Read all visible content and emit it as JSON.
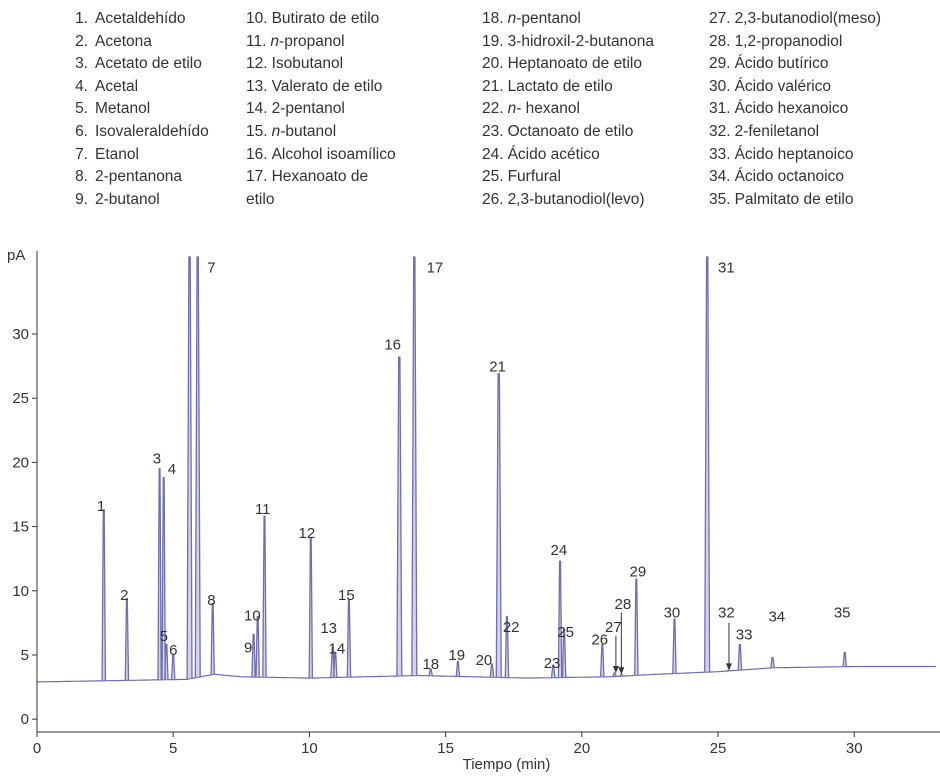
{
  "legend": [
    [
      {
        "num": "1.",
        "label": "Acetaldehído"
      },
      {
        "num": "2.",
        "label": "Acetona"
      },
      {
        "num": "3.",
        "label": "Acetato de etilo"
      },
      {
        "num": "4.",
        "label": "Acetal"
      },
      {
        "num": "5.",
        "label": "Metanol"
      },
      {
        "num": "6.",
        "label": "Isovaleraldehído"
      },
      {
        "num": "7.",
        "label": "Etanol"
      },
      {
        "num": "8.",
        "label": "2-pentanona"
      },
      {
        "num": "9.",
        "label": "2-butanol"
      }
    ],
    [
      {
        "num": "10.",
        "label": "Butirato de etilo"
      },
      {
        "num": "11.",
        "label": "n-propanol"
      },
      {
        "num": "12.",
        "label": "Isobutanol"
      },
      {
        "num": "13.",
        "label": "Valerato de etilo"
      },
      {
        "num": "14.",
        "label": "2-pentanol"
      },
      {
        "num": "15.",
        "label": "n-butanol"
      },
      {
        "num": "16.",
        "label": "Alcohol isoamílico"
      },
      {
        "num": "17.",
        "label": "Hexanoato de etilo"
      }
    ],
    [
      {
        "num": "18.",
        "label": "n-pentanol"
      },
      {
        "num": "19.",
        "label": "3-hidroxil-2-butanona"
      },
      {
        "num": "20.",
        "label": "Heptanoato de etilo"
      },
      {
        "num": "21.",
        "label": "Lactato de etilo"
      },
      {
        "num": "22.",
        "label": "n- hexanol"
      },
      {
        "num": "23.",
        "label": "Octanoato de etilo"
      },
      {
        "num": "24.",
        "label": "Ácido acético"
      },
      {
        "num": "25.",
        "label": "Furfural"
      },
      {
        "num": "26.",
        "label": "2,3-butanodiol(levo)"
      }
    ],
    [
      {
        "num": "27.",
        "label": "2,3-butanodiol(meso)"
      },
      {
        "num": "28.",
        "label": "1,2-propanodiol"
      },
      {
        "num": "29.",
        "label": "Ácido butírico"
      },
      {
        "num": "30.",
        "label": "Ácido valérico"
      },
      {
        "num": "31.",
        "label": "Ácido hexanoico"
      },
      {
        "num": "32.",
        "label": "2-feniletanol"
      },
      {
        "num": "33.",
        "label": "Ácido heptanoico"
      },
      {
        "num": "34.",
        "label": "Ácido octanoico"
      },
      {
        "num": "35.",
        "label": "Palmitato de etilo"
      }
    ]
  ],
  "colors": {
    "trace": "#6e6eb0",
    "trace_light": "#a8a8d8",
    "axis": "#333333",
    "text": "#333333"
  },
  "chart_data": {
    "type": "line",
    "xlabel": "Tiempo (min)",
    "ylabel": "pA",
    "xlim": [
      0,
      33
    ],
    "ylim": [
      -1,
      36
    ],
    "xticks": [
      0,
      5,
      10,
      15,
      20,
      25,
      30
    ],
    "yticks": [
      0,
      5,
      10,
      15,
      20,
      25,
      30
    ],
    "grid": false,
    "baseline": [
      [
        0,
        2.9
      ],
      [
        5.5,
        3.1
      ],
      [
        6.5,
        3.5
      ],
      [
        7.5,
        3.3
      ],
      [
        10,
        3.2
      ],
      [
        14,
        3.4
      ],
      [
        18,
        3.2
      ],
      [
        21,
        3.3
      ],
      [
        22.8,
        3.5
      ],
      [
        25,
        3.7
      ],
      [
        27,
        4.0
      ],
      [
        30,
        4.1
      ],
      [
        33,
        4.1
      ]
    ],
    "peaks": [
      {
        "label": "1",
        "x": 2.45,
        "y": 16.3
      },
      {
        "label": "2",
        "x": 3.3,
        "y": 9.4
      },
      {
        "label": "3",
        "x": 4.5,
        "y": 19.5
      },
      {
        "label": "4",
        "x": 4.65,
        "y": 18.8
      },
      {
        "label": "5",
        "x": 4.75,
        "y": 5.8
      },
      {
        "label": "6",
        "x": 5.0,
        "y": 5.0
      },
      {
        "label": "7",
        "x": 5.6,
        "y": 36
      },
      {
        "label": "7",
        "x": 5.9,
        "y": 36
      },
      {
        "label": "8",
        "x": 6.45,
        "y": 9.0
      },
      {
        "label": "9",
        "x": 7.95,
        "y": 6.6
      },
      {
        "label": "10",
        "x": 8.1,
        "y": 8.0
      },
      {
        "label": "11",
        "x": 8.35,
        "y": 15.8
      },
      {
        "label": "12",
        "x": 10.05,
        "y": 14.1
      },
      {
        "label": "13",
        "x": 10.85,
        "y": 5.6
      },
      {
        "label": "14",
        "x": 10.95,
        "y": 5.2
      },
      {
        "label": "15",
        "x": 11.45,
        "y": 9.3
      },
      {
        "label": "16",
        "x": 13.3,
        "y": 28.2
      },
      {
        "label": "17",
        "x": 13.85,
        "y": 36
      },
      {
        "label": "18",
        "x": 14.45,
        "y": 3.9
      },
      {
        "label": "19",
        "x": 15.45,
        "y": 4.5
      },
      {
        "label": "20",
        "x": 16.7,
        "y": 4.3
      },
      {
        "label": "21",
        "x": 16.95,
        "y": 26.9
      },
      {
        "label": "22",
        "x": 17.25,
        "y": 8.0
      },
      {
        "label": "23",
        "x": 18.95,
        "y": 4.2
      },
      {
        "label": "24",
        "x": 19.2,
        "y": 12.3
      },
      {
        "label": "25",
        "x": 19.35,
        "y": 7.0
      },
      {
        "label": "26",
        "x": 20.75,
        "y": 5.8
      },
      {
        "label": "27",
        "x": 21.2,
        "y": 3.6
      },
      {
        "label": "28",
        "x": 21.45,
        "y": 3.5
      },
      {
        "label": "29",
        "x": 22.0,
        "y": 10.9
      },
      {
        "label": "30",
        "x": 23.4,
        "y": 7.8
      },
      {
        "label": "31",
        "x": 24.6,
        "y": 36
      },
      {
        "label": "32",
        "x": 25.4,
        "y": 3.8
      },
      {
        "label": "33",
        "x": 25.8,
        "y": 5.8
      },
      {
        "label": "34",
        "x": 27.0,
        "y": 4.8
      },
      {
        "label": "35",
        "x": 29.65,
        "y": 5.2
      }
    ],
    "annotations": [
      {
        "text": "1",
        "x": 2.2,
        "y": 16.2
      },
      {
        "text": "2",
        "x": 3.05,
        "y": 9.3
      },
      {
        "text": "3",
        "x": 4.25,
        "y": 19.9
      },
      {
        "text": "4",
        "x": 4.8,
        "y": 19.1
      },
      {
        "text": "5",
        "x": 4.5,
        "y": 6.1
      },
      {
        "text": "6",
        "x": 4.85,
        "y": 5.0
      },
      {
        "text": "7",
        "x": 6.25,
        "y": 34.8
      },
      {
        "text": "8",
        "x": 6.25,
        "y": 8.9
      },
      {
        "text": "9",
        "x": 7.6,
        "y": 5.2
      },
      {
        "text": "10",
        "x": 7.6,
        "y": 7.7
      },
      {
        "text": "11",
        "x": 8.0,
        "y": 16.0
      },
      {
        "text": "12",
        "x": 9.6,
        "y": 14.1
      },
      {
        "text": "13",
        "x": 10.4,
        "y": 6.7
      },
      {
        "text": "14",
        "x": 10.7,
        "y": 5.1
      },
      {
        "text": "15",
        "x": 11.05,
        "y": 9.3
      },
      {
        "text": "16",
        "x": 12.75,
        "y": 28.8
      },
      {
        "text": "17",
        "x": 14.3,
        "y": 34.8
      },
      {
        "text": "18",
        "x": 14.15,
        "y": 3.9
      },
      {
        "text": "19",
        "x": 15.1,
        "y": 4.6
      },
      {
        "text": "20",
        "x": 16.1,
        "y": 4.2
      },
      {
        "text": "21",
        "x": 16.6,
        "y": 27.1
      },
      {
        "text": "22",
        "x": 17.1,
        "y": 6.8
      },
      {
        "text": "23",
        "x": 18.6,
        "y": 4.0
      },
      {
        "text": "24",
        "x": 18.85,
        "y": 12.8
      },
      {
        "text": "25",
        "x": 19.1,
        "y": 6.4
      },
      {
        "text": "26",
        "x": 20.35,
        "y": 5.8
      },
      {
        "text": "27",
        "x": 20.85,
        "y": 6.8
      },
      {
        "text": "28",
        "x": 21.2,
        "y": 8.6
      },
      {
        "text": "29",
        "x": 21.75,
        "y": 11.1
      },
      {
        "text": "30",
        "x": 23.0,
        "y": 7.9
      },
      {
        "text": "31",
        "x": 25.0,
        "y": 34.8
      },
      {
        "text": "32",
        "x": 25.0,
        "y": 7.9
      },
      {
        "text": "33",
        "x": 25.65,
        "y": 6.2
      },
      {
        "text": "34",
        "x": 26.85,
        "y": 7.6
      },
      {
        "text": "35",
        "x": 29.25,
        "y": 7.9
      }
    ],
    "arrows": [
      {
        "x": 21.25,
        "y_from": 6.5,
        "y_to": 3.6
      },
      {
        "x": 21.45,
        "y_from": 8.3,
        "y_to": 3.5
      },
      {
        "x": 25.4,
        "y_from": 7.5,
        "y_to": 3.8
      }
    ]
  }
}
